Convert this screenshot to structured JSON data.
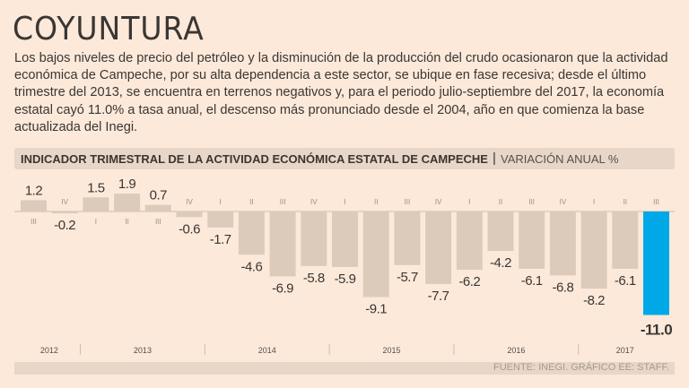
{
  "headline": "COYUNTURA",
  "lede": "Los bajos niveles de precio del petróleo y la disminución de la producción del crudo ocasionaron que la actividad económica de Campeche, por su alta dependencia a este sector, se ubique en fase recesiva; desde el último trimestre del 2013, se encuentra en terrenos negativos y, para el periodo julio-septiembre del 2017, la economía estatal cayó 11.0% a tasa anual, el descenso más pronunciado desde el 2004, año en que comienza la base actualizada del Inegi.",
  "source": "FUENTE: INEGI. GRÁFICO EE: STAFF.",
  "colors": {
    "background": "#fde9da",
    "bar": "#dccbbb",
    "highlight": "#00a8e8"
  },
  "chart_data": {
    "type": "bar",
    "title": "INDICADOR TRIMESTRAL DE LA ACTIVIDAD ECONÓMICA ESTATAL DE CAMPECHE",
    "subtitle": "VARIACIÓN ANUAL %",
    "quarters": [
      "III",
      "IV",
      "I",
      "II",
      "III",
      "IV",
      "I",
      "II",
      "III",
      "IV",
      "I",
      "II",
      "III",
      "IV",
      "I",
      "II",
      "III",
      "IV",
      "I",
      "II",
      "III"
    ],
    "years": [
      {
        "label": "2012",
        "count": 2
      },
      {
        "label": "2013",
        "count": 4
      },
      {
        "label": "2014",
        "count": 4
      },
      {
        "label": "2015",
        "count": 4
      },
      {
        "label": "2016",
        "count": 4
      },
      {
        "label": "2017",
        "count": 3
      }
    ],
    "value_labels": [
      "1.2",
      "-0.2",
      "1.5",
      "1.9",
      "0.7",
      "-0.6",
      "-1.7",
      "-4.6",
      "-6.9",
      "-5.8",
      "-5.9",
      "-9.1",
      "-5.7",
      "-7.7",
      "-6.2",
      "-4.2",
      "-6.1",
      "-6.8",
      "-8.2",
      "-6.1",
      "-11.0"
    ],
    "values": [
      1.2,
      -0.2,
      1.5,
      1.9,
      0.7,
      -0.6,
      -1.7,
      -4.6,
      -6.9,
      -5.8,
      -5.9,
      -9.1,
      -5.7,
      -7.7,
      -6.2,
      -4.2,
      -6.1,
      -6.8,
      -8.2,
      -6.1,
      -11.0
    ],
    "highlight_index": 20,
    "ylim": [
      -11.0,
      1.9
    ],
    "grid": false
  }
}
